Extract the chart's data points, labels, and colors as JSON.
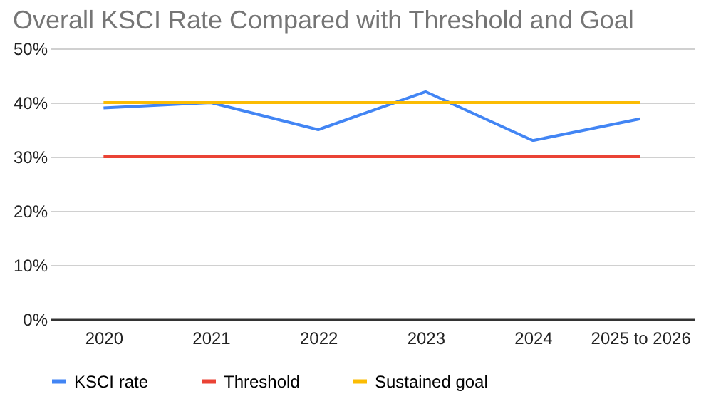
{
  "chart_data": {
    "type": "line",
    "title": "Overall KSCI Rate Compared with Threshold and Goal",
    "categories": [
      "2020",
      "2021",
      "2022",
      "2023",
      "2024",
      "2025 to 2026"
    ],
    "series": [
      {
        "name": "KSCI rate",
        "color": "#4285f4",
        "values": [
          39,
          40,
          35,
          42,
          33,
          37
        ]
      },
      {
        "name": "Threshold",
        "color": "#ea4335",
        "values": [
          30,
          30,
          30,
          30,
          30,
          30
        ]
      },
      {
        "name": "Sustained goal",
        "color": "#fbbc04",
        "values": [
          40,
          40,
          40,
          40,
          40,
          40
        ]
      }
    ],
    "ylim": [
      0,
      50
    ],
    "yticks": [
      {
        "value": 0,
        "label": "0%"
      },
      {
        "value": 10,
        "label": "10%"
      },
      {
        "value": 20,
        "label": "20%"
      },
      {
        "value": 30,
        "label": "30%"
      },
      {
        "value": 40,
        "label": "40%"
      },
      {
        "value": 50,
        "label": "50%"
      }
    ],
    "grid": "y",
    "legend": "bottom",
    "marker": "none",
    "line_style": "solid"
  }
}
